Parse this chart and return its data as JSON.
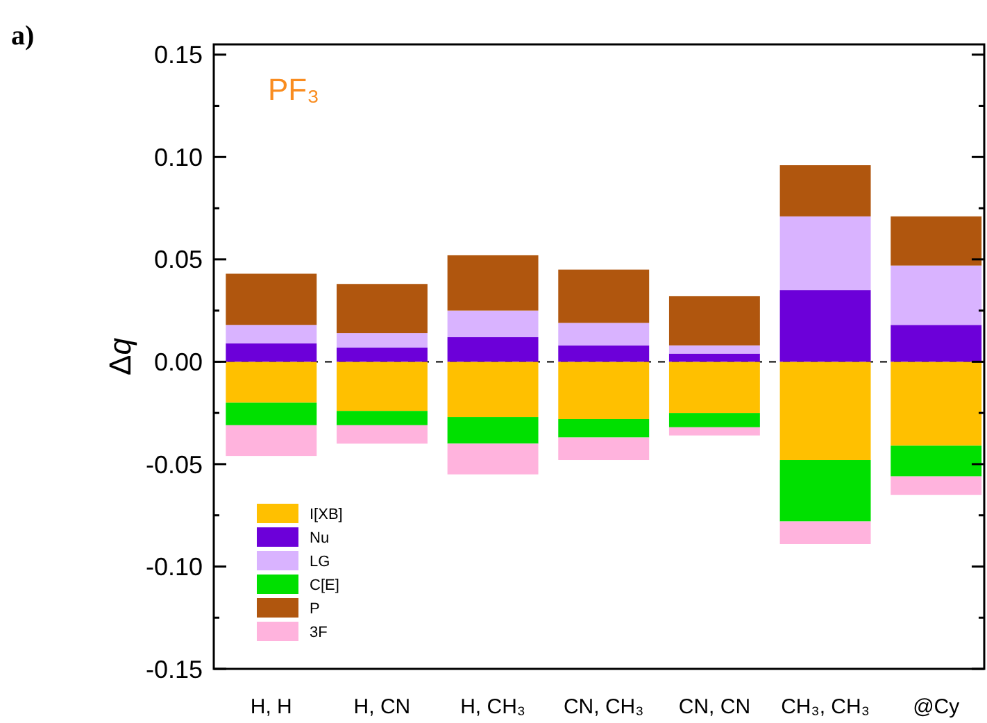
{
  "chart_data": {
    "type": "bar",
    "stacked": true,
    "annotations": [
      "a)",
      "PF₃"
    ],
    "ylabel": "Δq",
    "categories": [
      "H, H",
      "H, CN",
      "H, CH₃",
      "CN, CH₃",
      "CN, CN",
      "CH₃, CH₃",
      "@Cy"
    ],
    "series": [
      {
        "name": "I[XB]",
        "color": "#ffc000",
        "values": [
          -0.02,
          -0.024,
          -0.027,
          -0.028,
          -0.025,
          -0.048,
          -0.041
        ]
      },
      {
        "name": "Nu",
        "color": "#6c00d9",
        "values": [
          0.009,
          0.007,
          0.012,
          0.008,
          0.004,
          0.035,
          0.018
        ]
      },
      {
        "name": "LG",
        "color": "#d9b3ff",
        "values": [
          0.009,
          0.007,
          0.013,
          0.011,
          0.004,
          0.036,
          0.029
        ]
      },
      {
        "name": "C[E]",
        "color": "#00e000",
        "values": [
          -0.011,
          -0.007,
          -0.013,
          -0.009,
          -0.007,
          -0.03,
          -0.015
        ]
      },
      {
        "name": "P",
        "color": "#b0560e",
        "values": [
          0.025,
          0.024,
          0.027,
          0.026,
          0.024,
          0.025,
          0.024
        ]
      },
      {
        "name": "3F",
        "color": "#ffb3dd",
        "values": [
          -0.015,
          -0.009,
          -0.015,
          -0.011,
          -0.004,
          -0.011,
          -0.009
        ]
      }
    ],
    "ylim": [
      -0.15,
      0.155
    ],
    "yticks": [
      -0.15,
      {
        "value": -0.125,
        "label": null
      },
      {
        "value": -0.1,
        "label": "-0.10"
      },
      {
        "value": -0.075,
        "label": null
      },
      -0.05,
      {
        "value": -0.025,
        "label": null
      },
      {
        "value": 0,
        "label": "0.00"
      },
      {
        "value": 0.025,
        "label": null
      },
      0.05,
      {
        "value": 0.075,
        "label": null
      },
      {
        "value": 0.1,
        "label": "0.10"
      },
      {
        "value": 0.125,
        "label": null
      },
      0.15
    ],
    "ref_lines": [
      {
        "axis": "y",
        "value": 0,
        "line_style": "dashed",
        "color": "#000000"
      }
    ],
    "legend": "bottom left"
  }
}
